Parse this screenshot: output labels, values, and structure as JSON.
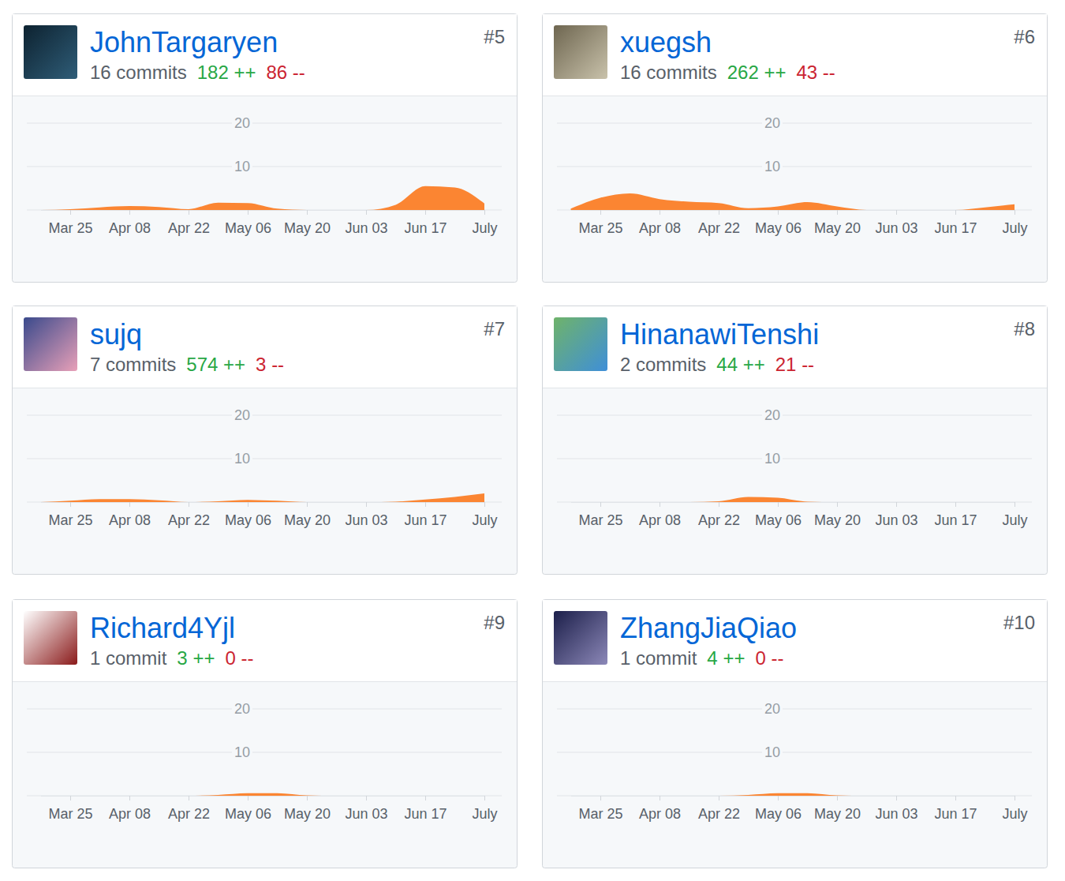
{
  "chart_data": [
    {
      "type": "area",
      "title": "JohnTargaryen",
      "subtitle": "16 commits",
      "annotations": [
        "#5",
        "182 ++",
        "86 --"
      ],
      "categories": [
        null,
        "Mar 25",
        null,
        "Apr 08",
        null,
        "Apr 22",
        null,
        "May 06",
        null,
        "May 20",
        null,
        "Jun 03",
        null,
        "Jun 17",
        null,
        "July"
      ],
      "values": [
        0,
        0.2,
        0.6,
        0.9,
        0.7,
        0.2,
        1.7,
        1.6,
        0.3,
        0,
        0,
        0,
        1.2,
        5.5,
        5.2,
        1.5
      ],
      "color": "#fb8532",
      "ylim": [
        0,
        20
      ],
      "yticks": [
        10,
        20
      ],
      "grid": true
    },
    {
      "type": "area",
      "title": "xuegsh",
      "subtitle": "16 commits",
      "annotations": [
        "#6",
        "262 ++",
        "43 --"
      ],
      "categories": [
        null,
        "Mar 25",
        null,
        "Apr 08",
        null,
        "Apr 22",
        null,
        "May 06",
        null,
        "May 20",
        null,
        "Jun 03",
        null,
        "Jun 17",
        null,
        "July"
      ],
      "values": [
        0.3,
        2.8,
        3.8,
        2.5,
        1.9,
        1.6,
        0.4,
        0.8,
        1.8,
        0.8,
        0,
        0,
        0,
        0,
        0.6,
        1.3
      ],
      "color": "#fb8532",
      "ylim": [
        0,
        20
      ],
      "yticks": [
        10,
        20
      ],
      "grid": true
    },
    {
      "type": "area",
      "title": "sujq",
      "subtitle": "7 commits",
      "annotations": [
        "#7",
        "574 ++",
        "3 --"
      ],
      "categories": [
        null,
        "Mar 25",
        null,
        "Apr 08",
        null,
        "Apr 22",
        null,
        "May 06",
        null,
        "May 20",
        null,
        "Jun 03",
        null,
        "Jun 17",
        null,
        "July"
      ],
      "values": [
        0,
        0.3,
        0.7,
        0.7,
        0.4,
        0,
        0.2,
        0.5,
        0.3,
        0,
        0,
        0,
        0.1,
        0.6,
        1.2,
        2.0
      ],
      "color": "#fb8532",
      "ylim": [
        0,
        20
      ],
      "yticks": [
        10,
        20
      ],
      "grid": true
    },
    {
      "type": "area",
      "title": "HinanawiTenshi",
      "subtitle": "2 commits",
      "annotations": [
        "#8",
        "44 ++",
        "21 --"
      ],
      "categories": [
        null,
        "Mar 25",
        null,
        "Apr 08",
        null,
        "Apr 22",
        null,
        "May 06",
        null,
        "May 20",
        null,
        "Jun 03",
        null,
        "Jun 17",
        null,
        "July"
      ],
      "values": [
        0,
        0,
        0,
        0,
        0,
        0.2,
        1.2,
        1.0,
        0.1,
        0,
        0,
        0,
        0,
        0,
        0,
        0
      ],
      "color": "#fb8532",
      "ylim": [
        0,
        20
      ],
      "yticks": [
        10,
        20
      ],
      "grid": true
    },
    {
      "type": "area",
      "title": "Richard4Yjl",
      "subtitle": "1 commit",
      "annotations": [
        "#9",
        "3 ++",
        "0 --"
      ],
      "categories": [
        null,
        "Mar 25",
        null,
        "Apr 08",
        null,
        "Apr 22",
        null,
        "May 06",
        null,
        "May 20",
        null,
        "Jun 03",
        null,
        "Jun 17",
        null,
        "July"
      ],
      "values": [
        0,
        0,
        0,
        0,
        0,
        0,
        0.2,
        0.6,
        0.6,
        0.1,
        0,
        0,
        0,
        0,
        0,
        0
      ],
      "color": "#fb8532",
      "ylim": [
        0,
        20
      ],
      "yticks": [
        10,
        20
      ],
      "grid": true
    },
    {
      "type": "area",
      "title": "ZhangJiaQiao",
      "subtitle": "1 commit",
      "annotations": [
        "#10",
        "4 ++",
        "0 --"
      ],
      "categories": [
        null,
        "Mar 25",
        null,
        "Apr 08",
        null,
        "Apr 22",
        null,
        "May 06",
        null,
        "May 20",
        null,
        "Jun 03",
        null,
        "Jun 17",
        null,
        "July"
      ],
      "values": [
        0,
        0,
        0,
        0,
        0,
        0,
        0.2,
        0.6,
        0.6,
        0.1,
        0,
        0,
        0,
        0,
        0,
        0
      ],
      "color": "#fb8532",
      "ylim": [
        0,
        20
      ],
      "yticks": [
        10,
        20
      ],
      "grid": true
    }
  ]
}
